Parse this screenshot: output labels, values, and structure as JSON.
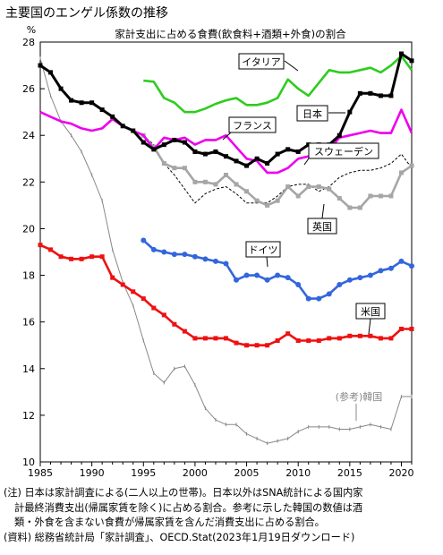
{
  "header": {
    "title": "主要国のエンゲル係数の推移"
  },
  "notes": [
    "(注) 日本は家計調査による(二人以上の世帯)。日本以外はSNA統計による国内家",
    "計最終消費支出(帰属家賃を除く)に占める割合。参考に示した韓国の数値は酒",
    "類・外食を含まない食費が帰属家賃を含んだ消費支出に占める割合。",
    "(資料) 総務省統計局「家計調査」、OECD.Stat(2023年1月19日ダウンロード)"
  ],
  "chart_data": {
    "type": "line",
    "title": "家計支出に占める食費(飲食料+酒類+外食)の割合",
    "ylabel": "%",
    "xlim": [
      1985,
      2021
    ],
    "ylim": [
      10,
      28
    ],
    "xticks": [
      1985,
      1990,
      1995,
      2000,
      2005,
      2010,
      2015,
      2020
    ],
    "yticks": [
      10,
      12,
      14,
      16,
      18,
      20,
      22,
      24,
      26,
      28
    ],
    "grid": false,
    "series": [
      {
        "name": "イタリア",
        "color": "#2ecc1e",
        "style": "solid",
        "marker": "none",
        "x": [
          1995,
          1996,
          1997,
          1998,
          1999,
          2000,
          2001,
          2002,
          2003,
          2004,
          2005,
          2006,
          2007,
          2008,
          2009,
          2010,
          2011,
          2012,
          2013,
          2014,
          2015,
          2016,
          2017,
          2018,
          2019,
          2020,
          2021
        ],
        "y": [
          26.35,
          26.3,
          25.6,
          25.4,
          25.0,
          25.0,
          25.15,
          25.35,
          25.5,
          25.6,
          25.3,
          25.3,
          25.4,
          25.6,
          26.4,
          26.0,
          25.7,
          26.25,
          26.8,
          26.7,
          26.7,
          26.8,
          26.9,
          26.7,
          27.0,
          27.4,
          26.8
        ]
      },
      {
        "name": "日本",
        "color": "#000000",
        "style": "solid",
        "marker": "square",
        "x": [
          1985,
          1986,
          1987,
          1988,
          1989,
          1990,
          1991,
          1992,
          1993,
          1994,
          1995,
          1996,
          1997,
          1998,
          1999,
          2000,
          2001,
          2002,
          2003,
          2004,
          2005,
          2006,
          2007,
          2008,
          2009,
          2010,
          2011,
          2012,
          2013,
          2014,
          2015,
          2016,
          2017,
          2018,
          2019,
          2020,
          2021
        ],
        "y": [
          27.0,
          26.7,
          26.0,
          25.5,
          25.4,
          25.4,
          25.1,
          24.8,
          24.4,
          24.2,
          23.7,
          23.4,
          23.6,
          23.8,
          23.7,
          23.3,
          23.2,
          23.3,
          23.1,
          22.9,
          22.7,
          23.0,
          22.8,
          23.2,
          23.4,
          23.3,
          23.6,
          23.6,
          23.6,
          24.0,
          25.0,
          25.8,
          25.8,
          25.7,
          25.7,
          27.5,
          27.2
        ]
      },
      {
        "name": "フランス",
        "color": "#ee00ee",
        "style": "solid",
        "marker": "none",
        "x": [
          1985,
          1986,
          1987,
          1988,
          1989,
          1990,
          1991,
          1992,
          1993,
          1994,
          1995,
          1996,
          1997,
          1998,
          1999,
          2000,
          2001,
          2002,
          2003,
          2004,
          2005,
          2006,
          2007,
          2008,
          2009,
          2010,
          2011,
          2012,
          2013,
          2014,
          2015,
          2016,
          2017,
          2018,
          2019,
          2020,
          2021
        ],
        "y": [
          25.0,
          24.8,
          24.6,
          24.5,
          24.3,
          24.2,
          24.3,
          24.7,
          24.4,
          24.2,
          24.0,
          23.4,
          23.9,
          23.8,
          23.9,
          23.6,
          23.8,
          23.8,
          24.0,
          23.5,
          23.0,
          22.9,
          22.4,
          22.4,
          22.6,
          23.0,
          23.1,
          23.1,
          23.4,
          23.9,
          24.0,
          24.1,
          24.2,
          24.1,
          24.1,
          25.1,
          24.1
        ]
      },
      {
        "name": "スウェーデン",
        "color": "#000000",
        "style": "dashed",
        "marker": "none",
        "x": [
          1995,
          1996,
          1997,
          1998,
          1999,
          2000,
          2001,
          2002,
          2003,
          2004,
          2005,
          2006,
          2007,
          2008,
          2009,
          2010,
          2011,
          2012,
          2013,
          2014,
          2015,
          2016,
          2017,
          2018,
          2019,
          2020,
          2021
        ],
        "y": [
          24.0,
          23.6,
          22.8,
          22.3,
          21.7,
          21.1,
          21.5,
          21.7,
          21.8,
          21.5,
          21.1,
          21.1,
          21.1,
          21.4,
          21.8,
          21.9,
          21.9,
          21.6,
          21.8,
          22.2,
          22.4,
          22.5,
          22.5,
          22.6,
          22.8,
          23.2,
          22.6
        ]
      },
      {
        "name": "英国",
        "color": "#a6a6a6",
        "style": "solid",
        "marker": "square",
        "x": [
          1995,
          1996,
          1997,
          1998,
          1999,
          2000,
          2001,
          2002,
          2003,
          2004,
          2005,
          2006,
          2007,
          2008,
          2009,
          2010,
          2011,
          2012,
          2013,
          2014,
          2015,
          2016,
          2017,
          2018,
          2019,
          2020,
          2021
        ],
        "y": [
          24.0,
          23.5,
          22.8,
          22.6,
          22.6,
          22.0,
          22.0,
          21.9,
          22.3,
          21.9,
          21.6,
          21.2,
          21.0,
          21.2,
          21.8,
          21.4,
          21.8,
          21.8,
          21.7,
          21.3,
          20.9,
          20.9,
          21.4,
          21.4,
          21.4,
          22.4,
          22.7
        ]
      },
      {
        "name": "ドイツ",
        "color": "#3366dd",
        "style": "solid",
        "marker": "circle",
        "x": [
          1995,
          1996,
          1997,
          1998,
          1999,
          2000,
          2001,
          2002,
          2003,
          2004,
          2005,
          2006,
          2007,
          2008,
          2009,
          2010,
          2011,
          2012,
          2013,
          2014,
          2015,
          2016,
          2017,
          2018,
          2019,
          2020,
          2021
        ],
        "y": [
          19.5,
          19.1,
          19.0,
          18.9,
          18.9,
          18.8,
          18.7,
          18.6,
          18.5,
          17.8,
          18.0,
          18.0,
          17.8,
          18.0,
          17.9,
          17.6,
          17.0,
          17.0,
          17.2,
          17.6,
          17.8,
          17.9,
          18.0,
          18.2,
          18.3,
          18.6,
          18.4
        ]
      },
      {
        "name": "米国",
        "color": "#ee1111",
        "style": "solid",
        "marker": "square",
        "x": [
          1985,
          1986,
          1987,
          1988,
          1989,
          1990,
          1991,
          1992,
          1993,
          1994,
          1995,
          1996,
          1997,
          1998,
          1999,
          2000,
          2001,
          2002,
          2003,
          2004,
          2005,
          2006,
          2007,
          2008,
          2009,
          2010,
          2011,
          2012,
          2013,
          2014,
          2015,
          2016,
          2017,
          2018,
          2019,
          2020,
          2021
        ],
        "y": [
          19.3,
          19.1,
          18.8,
          18.7,
          18.7,
          18.8,
          18.8,
          17.9,
          17.6,
          17.3,
          17.0,
          16.6,
          16.3,
          15.9,
          15.6,
          15.3,
          15.3,
          15.3,
          15.3,
          15.1,
          15.0,
          15.0,
          15.0,
          15.2,
          15.5,
          15.2,
          15.2,
          15.2,
          15.3,
          15.3,
          15.4,
          15.4,
          15.4,
          15.3,
          15.3,
          15.7,
          15.7
        ]
      },
      {
        "name": "(参考)韓国",
        "color": "#888888",
        "style": "solid",
        "marker": "tick",
        "x": [
          1985,
          1986,
          1987,
          1988,
          1989,
          1990,
          1991,
          1992,
          1993,
          1994,
          1995,
          1996,
          1997,
          1998,
          1999,
          2000,
          2001,
          2002,
          2003,
          2004,
          2005,
          2006,
          2007,
          2008,
          2009,
          2010,
          2011,
          2012,
          2013,
          2014,
          2015,
          2016,
          2017,
          2018,
          2019,
          2020,
          2021
        ],
        "y": [
          27.3,
          25.7,
          24.6,
          24.0,
          23.3,
          22.3,
          21.2,
          19.1,
          17.7,
          16.7,
          15.2,
          13.8,
          13.4,
          14.0,
          14.1,
          13.3,
          12.3,
          11.8,
          11.6,
          11.6,
          11.2,
          11.0,
          10.8,
          10.9,
          11.0,
          11.3,
          11.5,
          11.5,
          11.5,
          11.4,
          11.4,
          11.5,
          11.6,
          11.5,
          11.4,
          12.8,
          12.8
        ]
      }
    ],
    "labels": [
      {
        "text": "イタリア",
        "series": "イタリア",
        "box": true
      },
      {
        "text": "日本",
        "series": "日本",
        "box": true
      },
      {
        "text": "フランス",
        "series": "フランス",
        "box": true
      },
      {
        "text": "スウェーデン",
        "series": "スウェーデン",
        "box": true
      },
      {
        "text": "英国",
        "series": "英国",
        "box": true
      },
      {
        "text": "ドイツ",
        "series": "ドイツ",
        "box": true
      },
      {
        "text": "米国",
        "series": "米国",
        "box": true
      },
      {
        "text": "(参考)韓国",
        "series": "(参考)韓国",
        "box": false
      }
    ]
  }
}
